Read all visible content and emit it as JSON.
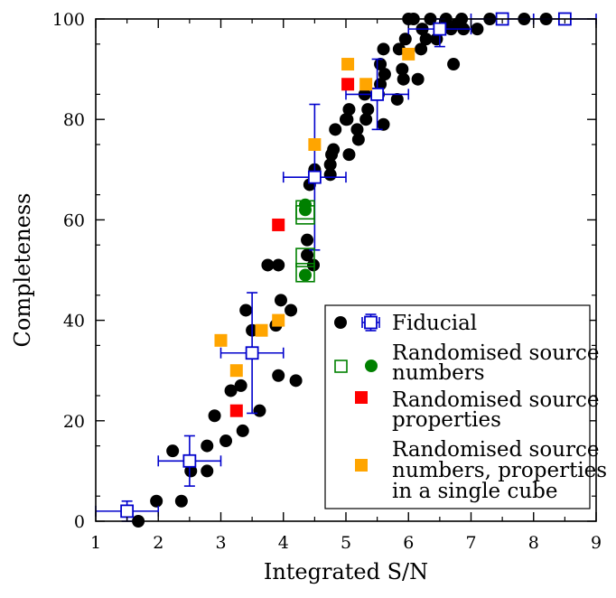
{
  "chart_data": {
    "type": "scatter",
    "xlabel": "Integrated S/N",
    "ylabel": "Completeness",
    "xlim": [
      1,
      9
    ],
    "ylim": [
      0,
      100
    ],
    "xticks": [
      "1",
      "2",
      "3",
      "4",
      "5",
      "6",
      "7",
      "8",
      "9"
    ],
    "yticks": [
      "0",
      "20",
      "40",
      "60",
      "80",
      "100"
    ],
    "legend_position": "lower-right",
    "legend": [
      {
        "label": "Fiducial",
        "markers": [
          "black circle",
          "blue open square with error bars"
        ]
      },
      {
        "label": "Randomised source numbers",
        "markers": [
          "green open square",
          "green circle"
        ]
      },
      {
        "label": "Randomised source properties",
        "markers": [
          "red square"
        ]
      },
      {
        "label": "Randomised source numbers, properties in a single cube",
        "markers": [
          "orange square"
        ]
      }
    ],
    "series": [
      {
        "name": "Fiducial (individual)",
        "marker": "circle",
        "color": "#000000",
        "points": [
          [
            1.68,
            0
          ],
          [
            1.97,
            4
          ],
          [
            2.23,
            14
          ],
          [
            2.37,
            4
          ],
          [
            2.52,
            10
          ],
          [
            2.78,
            15
          ],
          [
            2.78,
            10
          ],
          [
            2.9,
            21
          ],
          [
            3.08,
            16
          ],
          [
            3.16,
            26
          ],
          [
            3.32,
            27
          ],
          [
            3.35,
            18
          ],
          [
            3.4,
            42
          ],
          [
            3.5,
            38
          ],
          [
            3.62,
            22
          ],
          [
            3.75,
            51
          ],
          [
            3.88,
            39
          ],
          [
            3.92,
            51
          ],
          [
            3.92,
            29
          ],
          [
            3.96,
            44
          ],
          [
            4.12,
            42
          ],
          [
            4.2,
            28
          ],
          [
            4.38,
            53
          ],
          [
            4.38,
            56
          ],
          [
            4.42,
            67
          ],
          [
            4.48,
            51
          ],
          [
            4.5,
            70
          ],
          [
            4.75,
            69
          ],
          [
            4.75,
            71
          ],
          [
            4.77,
            73
          ],
          [
            4.8,
            74
          ],
          [
            4.83,
            78
          ],
          [
            5.0,
            80
          ],
          [
            5.02,
            80
          ],
          [
            5.05,
            82
          ],
          [
            5.05,
            73
          ],
          [
            5.18,
            78
          ],
          [
            5.2,
            76
          ],
          [
            5.3,
            85
          ],
          [
            5.32,
            80
          ],
          [
            5.35,
            82
          ],
          [
            5.52,
            85
          ],
          [
            5.55,
            87
          ],
          [
            5.55,
            91
          ],
          [
            5.6,
            94
          ],
          [
            5.6,
            79
          ],
          [
            5.62,
            89
          ],
          [
            5.82,
            84
          ],
          [
            5.85,
            94
          ],
          [
            5.9,
            90
          ],
          [
            5.92,
            88
          ],
          [
            5.95,
            96
          ],
          [
            6.0,
            100
          ],
          [
            6.08,
            100
          ],
          [
            6.15,
            88
          ],
          [
            6.2,
            94
          ],
          [
            6.22,
            98
          ],
          [
            6.28,
            96
          ],
          [
            6.35,
            100
          ],
          [
            6.45,
            96
          ],
          [
            6.5,
            98
          ],
          [
            6.6,
            100
          ],
          [
            6.68,
            98
          ],
          [
            6.72,
            91
          ],
          [
            6.78,
            99
          ],
          [
            6.85,
            100
          ],
          [
            6.88,
            98
          ],
          [
            7.1,
            98
          ],
          [
            7.3,
            100
          ],
          [
            7.85,
            100
          ],
          [
            8.2,
            100
          ]
        ]
      },
      {
        "name": "Fiducial (binned)",
        "marker": "open-square",
        "color": "#0000cc",
        "points": [
          {
            "x": 1.5,
            "y": 2,
            "xerr": 0.5,
            "yerr": [
              2,
              2
            ]
          },
          {
            "x": 2.5,
            "y": 12,
            "xerr": 0.5,
            "yerr": [
              5,
              5
            ]
          },
          {
            "x": 3.5,
            "y": 33.5,
            "xerr": 0.5,
            "yerr": [
              12,
              12
            ]
          },
          {
            "x": 4.5,
            "y": 68.5,
            "xerr": 0.5,
            "yerr": [
              14.5,
              14.5
            ]
          },
          {
            "x": 5.5,
            "y": 85,
            "xerr": 0.5,
            "yerr": [
              7,
              7
            ]
          },
          {
            "x": 6.5,
            "y": 98,
            "xerr": 0.5,
            "yerr": [
              3.5,
              2
            ]
          },
          {
            "x": 7.5,
            "y": 100,
            "xerr": 0.5,
            "yerr": [
              0,
              0
            ]
          },
          {
            "x": 8.5,
            "y": 100,
            "xerr": 0.5,
            "yerr": [
              0,
              0
            ]
          }
        ]
      },
      {
        "name": "Randomised source numbers (individual)",
        "marker": "circle",
        "color": "#008000",
        "points": [
          [
            4.35,
            49
          ],
          [
            4.35,
            62
          ],
          [
            4.35,
            63
          ]
        ]
      },
      {
        "name": "Randomised source numbers (binned)",
        "marker": "open-square",
        "color": "#008000",
        "points": [
          [
            4.35,
            49.5
          ],
          [
            4.35,
            52.5
          ],
          [
            4.35,
            61
          ],
          [
            4.35,
            62
          ]
        ]
      },
      {
        "name": "Randomised source properties",
        "marker": "square",
        "color": "#ff0000",
        "points": [
          [
            3.25,
            22
          ],
          [
            3.92,
            59
          ],
          [
            5.03,
            87
          ]
        ]
      },
      {
        "name": "Randomised source numbers, properties in a single cube",
        "marker": "square",
        "color": "#ffa500",
        "points": [
          [
            3.0,
            36
          ],
          [
            3.25,
            30
          ],
          [
            3.65,
            38
          ],
          [
            3.92,
            40
          ],
          [
            4.5,
            75
          ],
          [
            5.03,
            91
          ],
          [
            5.32,
            87
          ],
          [
            6.0,
            93
          ]
        ]
      }
    ]
  }
}
